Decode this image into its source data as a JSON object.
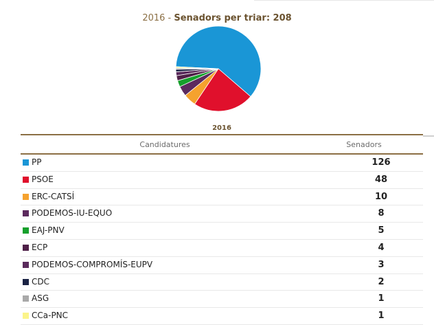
{
  "header": {
    "year": "2016",
    "separator": " - ",
    "label": "Senadors per triar: 208"
  },
  "table": {
    "year_label": "2016",
    "col_candidatures": "Candidatures",
    "col_senadors": "Senadors",
    "rows": [
      {
        "party": "PP",
        "seats": "126",
        "color": "#1a96d6"
      },
      {
        "party": "PSOE",
        "seats": "48",
        "color": "#e0102c"
      },
      {
        "party": "ERC-CATSÍ",
        "seats": "10",
        "color": "#f5a22e"
      },
      {
        "party": "PODEMOS-IU-EQUO",
        "seats": "8",
        "color": "#5c2a5e"
      },
      {
        "party": "EAJ-PNV",
        "seats": "5",
        "color": "#16a02c"
      },
      {
        "party": "ECP",
        "seats": "4",
        "color": "#4f2048"
      },
      {
        "party": "PODEMOS-COMPROMÍS-EUPV",
        "seats": "3",
        "color": "#5a2a5c"
      },
      {
        "party": "CDC",
        "seats": "2",
        "color": "#1a2244"
      },
      {
        "party": "ASG",
        "seats": "1",
        "color": "#a9a9a9"
      },
      {
        "party": "CCa-PNC",
        "seats": "1",
        "color": "#fbf48a"
      }
    ]
  },
  "chart_data": {
    "type": "pie",
    "categories": [
      "PP",
      "PSOE",
      "ERC-CATSÍ",
      "PODEMOS-IU-EQUO",
      "EAJ-PNV",
      "ECP",
      "PODEMOS-COMPROMÍS-EUPV",
      "CDC",
      "ASG",
      "CCa-PNC"
    ],
    "values": [
      126,
      48,
      10,
      8,
      5,
      4,
      3,
      2,
      1,
      1
    ],
    "colors": [
      "#1a96d6",
      "#e0102c",
      "#f5a22e",
      "#5c2a5e",
      "#16a02c",
      "#4f2048",
      "#5a2a5c",
      "#1a2244",
      "#a9a9a9",
      "#fbf48a"
    ]
  }
}
